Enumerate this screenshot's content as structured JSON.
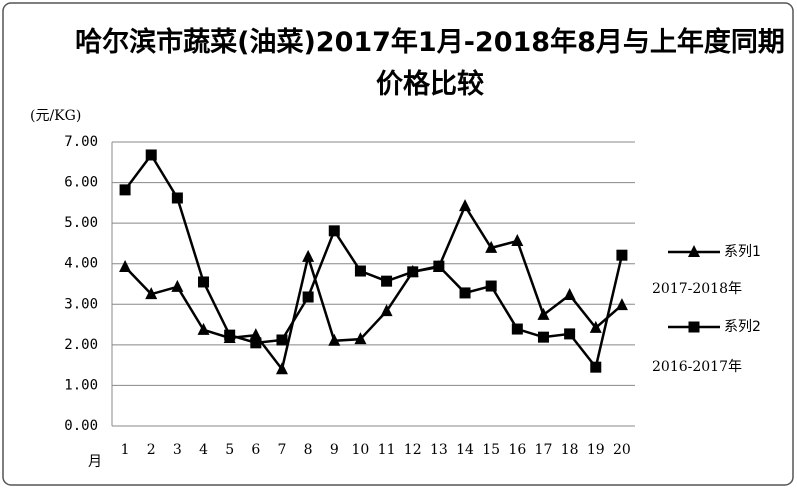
{
  "chart_data": {
    "type": "line",
    "title": "哈尔滨市蔬菜(油菜)2017年1月-2018年8月与上年度同期价格比较",
    "y_label": "(元/KG)",
    "x_label": "月",
    "categories": [
      "1",
      "2",
      "3",
      "4",
      "5",
      "6",
      "7",
      "8",
      "9",
      "10",
      "11",
      "12",
      "13",
      "14",
      "15",
      "16",
      "17",
      "18",
      "19",
      "20"
    ],
    "series": [
      {
        "name": "系列1",
        "color": "#000000",
        "marker": "triangle",
        "values": [
          3.92,
          3.25,
          3.43,
          2.37,
          2.17,
          2.24,
          1.4,
          4.17,
          2.1,
          2.14,
          2.83,
          3.8,
          3.92,
          5.42,
          4.39,
          4.56,
          2.74,
          3.23,
          2.42,
          2.98
        ]
      },
      {
        "name": "系列2",
        "color": "#000000",
        "marker": "square",
        "values": [
          5.82,
          6.68,
          5.62,
          3.55,
          2.24,
          2.05,
          2.12,
          3.18,
          4.81,
          3.82,
          3.57,
          3.8,
          3.94,
          3.28,
          3.45,
          2.39,
          2.19,
          2.27,
          1.45,
          4.21
        ]
      }
    ],
    "annotations": [
      "2017-2018年",
      "2016-2017年"
    ],
    "ylim": [
      0,
      7
    ],
    "yticks": [
      {
        "value": 0,
        "label": "0.00"
      },
      {
        "value": 1,
        "label": "1.00"
      },
      {
        "value": 2,
        "label": "2.00"
      },
      {
        "value": 3,
        "label": "3.00"
      },
      {
        "value": 4,
        "label": "4.00"
      },
      {
        "value": 5,
        "label": "5.00"
      },
      {
        "value": 6,
        "label": "6.00"
      },
      {
        "value": 7,
        "label": "7.00"
      }
    ],
    "grid": true,
    "legend": "right"
  }
}
